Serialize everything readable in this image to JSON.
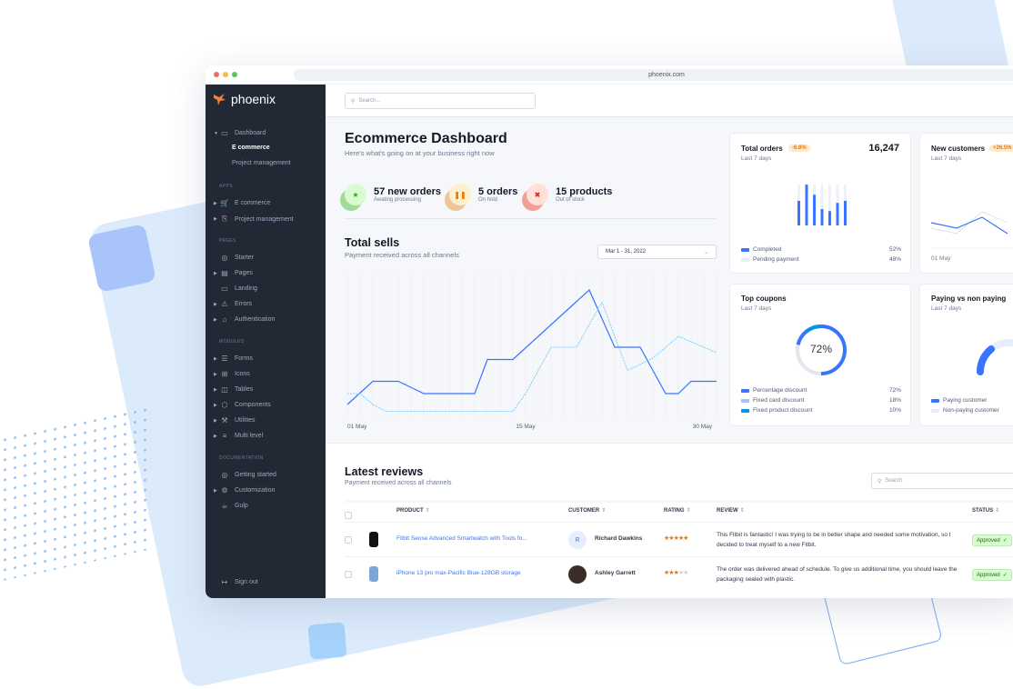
{
  "browser": {
    "url": "phoenix.com"
  },
  "brand": {
    "name": "phoenix",
    "accent": "#3874ff",
    "logo_color": "#f5803e"
  },
  "sidebar": {
    "dashboard": {
      "label": "Dashboard",
      "children": [
        "E commerce",
        "Project management"
      ],
      "active": "E commerce"
    },
    "sections": [
      {
        "title": "APPS",
        "items": [
          {
            "label": "E commerce",
            "icon": "cart-icon",
            "expand": true
          },
          {
            "label": "Project management",
            "icon": "clipboard-icon",
            "expand": true
          }
        ]
      },
      {
        "title": "PAGES",
        "items": [
          {
            "label": "Starter",
            "icon": "compass-icon",
            "expand": false
          },
          {
            "label": "Pages",
            "icon": "layout-icon",
            "expand": true
          },
          {
            "label": "Landing",
            "icon": "monitor-icon",
            "expand": false
          },
          {
            "label": "Errors",
            "icon": "alert-triangle-icon",
            "expand": true
          },
          {
            "label": "Authentication",
            "icon": "lock-icon",
            "expand": true
          }
        ]
      },
      {
        "title": "MODULES",
        "items": [
          {
            "label": "Forms",
            "icon": "file-text-icon",
            "expand": true
          },
          {
            "label": "Icons",
            "icon": "grid-icon",
            "expand": true
          },
          {
            "label": "Tables",
            "icon": "columns-icon",
            "expand": true
          },
          {
            "label": "Components",
            "icon": "package-icon",
            "expand": true
          },
          {
            "label": "Utilities",
            "icon": "tool-icon",
            "expand": true
          },
          {
            "label": "Multi level",
            "icon": "layers-icon",
            "expand": true
          }
        ]
      },
      {
        "title": "DOCUMENTATION",
        "items": [
          {
            "label": "Getting started",
            "icon": "life-buoy-icon",
            "expand": false
          },
          {
            "label": "Customization",
            "icon": "settings-icon",
            "expand": true
          },
          {
            "label": "Gulp",
            "icon": "gulp-icon",
            "expand": false
          }
        ]
      }
    ],
    "signout": "Sign out"
  },
  "header": {
    "search_placeholder": "Search..."
  },
  "main": {
    "title": "Ecommerce Dashboard",
    "subtitle": "Here's what's going on at your business right now",
    "stats": [
      {
        "title": "57 new orders",
        "sub": "Awating processing",
        "icon": "star-icon",
        "color": "#25b003",
        "bg": "#d9fbd0"
      },
      {
        "title": "5 orders",
        "sub": "On hold",
        "icon": "pause-icon",
        "color": "#e5780b",
        "bg": "#ffefca"
      },
      {
        "title": "15 products",
        "sub": "Out of stock",
        "icon": "x-icon",
        "color": "#ec1f00",
        "bg": "#ffe0db"
      }
    ],
    "sells": {
      "title": "Total sells",
      "sub": "Payment received across all channels",
      "date_range": "Mar 1 - 31, 2022"
    }
  },
  "chart_data": [
    {
      "type": "line",
      "x_ticks": [
        "01 May",
        "15 May",
        "30 May"
      ],
      "grid": true,
      "x": [
        0,
        1,
        2,
        3,
        4,
        5,
        6,
        7,
        8,
        9,
        10,
        11,
        12,
        13,
        14,
        15,
        16,
        17,
        18,
        19,
        20,
        21,
        22,
        23,
        24,
        25,
        26,
        27,
        28,
        29
      ],
      "series": [
        {
          "style": "solid",
          "color": "#3874ff",
          "values": [
            8,
            16.5,
            25,
            25,
            25,
            20.5,
            16,
            16,
            16,
            16,
            16,
            41,
            41,
            41,
            49.5,
            58,
            66.5,
            75,
            83.5,
            92,
            71,
            50,
            50,
            50,
            33,
            16,
            16,
            25,
            25,
            25
          ]
        },
        {
          "style": "dashed",
          "color": "#60c6ff",
          "values": [
            16,
            16,
            8,
            3,
            3,
            3,
            3,
            3,
            3,
            3,
            3,
            3,
            3,
            3,
            16,
            33,
            50,
            50,
            50,
            66.5,
            83,
            58,
            33,
            37.5,
            42,
            50,
            58,
            54,
            50,
            46
          ]
        }
      ]
    },
    {
      "type": "bar",
      "title": "Total orders",
      "values_completed_fraction": [
        0.6,
        1.0,
        0.75,
        0.4,
        0.35,
        0.55,
        0.6
      ]
    },
    {
      "type": "line",
      "title": "New customers",
      "x_ticks": [
        "01 May"
      ],
      "series": [
        {
          "color": "#3874ff",
          "values": [
            45,
            35,
            55,
            25
          ]
        },
        {
          "color": "#e3e6ed",
          "values": [
            35,
            25,
            65,
            45
          ]
        }
      ]
    },
    {
      "type": "pie",
      "title": "Top coupons",
      "values": [
        72,
        18,
        10
      ]
    },
    {
      "type": "pie",
      "title": "Paying vs non paying",
      "values": [
        30,
        70
      ]
    }
  ],
  "cards": {
    "orders": {
      "title": "Total orders",
      "badge": "-6.8%",
      "value": "16,247",
      "period": "Last 7 days",
      "legend": [
        {
          "label": "Completed",
          "value": "52%",
          "color": "#3874ff"
        },
        {
          "label": "Pending payment",
          "value": "48%",
          "color": "#e5edff"
        }
      ]
    },
    "customers": {
      "title": "New customers",
      "badge": "+26.5%",
      "period": "Last 7 days",
      "tick": "01 May"
    },
    "coupons": {
      "title": "Top coupons",
      "period": "Last 7 days",
      "center": "72%",
      "legend": [
        {
          "label": "Percentage discount",
          "value": "72%",
          "color": "#3874ff"
        },
        {
          "label": "Fixed card discount",
          "value": "18%",
          "color": "#a3c1ff"
        },
        {
          "label": "Fixed product discount",
          "value": "10%",
          "color": "#0097eb"
        }
      ]
    },
    "paying": {
      "title": "Paying vs non paying",
      "period": "Last 7 days",
      "legend": [
        {
          "label": "Paying customer",
          "color": "#3874ff"
        },
        {
          "label": "Non-paying customer",
          "color": "#e5edff"
        }
      ]
    }
  },
  "reviews": {
    "title": "Latest reviews",
    "sub": "Payment received across all channels",
    "search_placeholder": "Search",
    "columns": [
      "PRODUCT",
      "CUSTOMER",
      "RATING",
      "REVIEW",
      "STATUS"
    ],
    "rows": [
      {
        "product": "Fitbit Sense Advanced Smartwatch with Tools fo...",
        "customer": "Richard Dawkins",
        "initial": "R",
        "rating": 5,
        "review": "This Fitbit is fantastic! I was trying to be in better shape and needed some motivation, so I decided to treat myself to a new Fitbit.",
        "status": "Approved"
      },
      {
        "product": "iPhone 13 pro max-Pacific Blue-128GB storage",
        "customer": "Ashley Garrett",
        "initial": "",
        "rating": 3,
        "review": "The order was delivered ahead of schedule. To give us additional time, you should leave the packaging sealed with plastic.",
        "status": "Approved"
      }
    ]
  }
}
